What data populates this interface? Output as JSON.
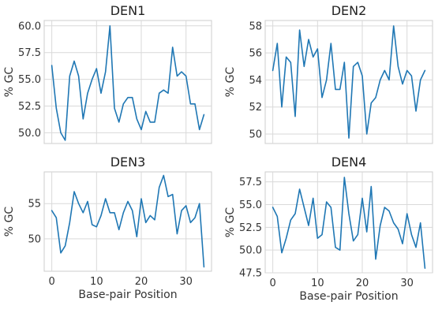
{
  "chart_data": [
    {
      "type": "line",
      "title": "DEN1",
      "xlabel": "",
      "ylabel": "% GC",
      "xlim": [
        -1.7,
        35.7
      ],
      "ylim": [
        49.0,
        60.5
      ],
      "xticks": [],
      "yticks": [
        50.0,
        52.5,
        55.0,
        57.5,
        60.0
      ],
      "ytick_labels": [
        "50.0",
        "52.5",
        "55.0",
        "57.5",
        "60.0"
      ],
      "color": "#1f77b4",
      "series": [
        {
          "name": "DEN1",
          "x": [
            0,
            1,
            2,
            3,
            4,
            5,
            6,
            7,
            8,
            9,
            10,
            11,
            12,
            13,
            14,
            15,
            16,
            17,
            18,
            19,
            20,
            21,
            22,
            23,
            24,
            25,
            26,
            27,
            28,
            29,
            30,
            31,
            32,
            33,
            34
          ],
          "values": [
            56.3,
            52.3,
            50.0,
            49.3,
            55.3,
            56.7,
            55.3,
            51.3,
            53.7,
            55.0,
            56.0,
            53.7,
            55.7,
            60.0,
            52.3,
            51.0,
            52.7,
            53.3,
            53.3,
            51.3,
            50.3,
            52.0,
            51.0,
            51.0,
            53.7,
            54.0,
            53.7,
            58.0,
            55.3,
            55.7,
            55.3,
            52.7,
            52.7,
            50.3,
            51.7
          ]
        }
      ]
    },
    {
      "type": "line",
      "title": "DEN2",
      "xlabel": "",
      "ylabel": "% GC",
      "xlim": [
        -1.7,
        35.7
      ],
      "ylim": [
        49.3,
        58.4
      ],
      "xticks": [],
      "yticks": [
        50,
        52,
        54,
        56,
        58
      ],
      "ytick_labels": [
        "50",
        "52",
        "54",
        "56",
        "58"
      ],
      "color": "#1f77b4",
      "series": [
        {
          "name": "DEN2",
          "x": [
            0,
            1,
            2,
            3,
            4,
            5,
            6,
            7,
            8,
            9,
            10,
            11,
            12,
            13,
            14,
            15,
            16,
            17,
            18,
            19,
            20,
            21,
            22,
            23,
            24,
            25,
            26,
            27,
            28,
            29,
            30,
            31,
            32,
            33,
            34
          ],
          "values": [
            54.7,
            56.7,
            52.0,
            55.7,
            55.3,
            51.3,
            57.7,
            55.0,
            57.0,
            55.7,
            56.3,
            52.7,
            54.0,
            56.7,
            53.3,
            53.3,
            55.3,
            49.7,
            55.0,
            55.3,
            54.3,
            50.0,
            52.3,
            52.7,
            54.0,
            54.7,
            54.0,
            58.0,
            55.0,
            53.7,
            54.7,
            54.3,
            51.7,
            54.0,
            54.7
          ]
        }
      ]
    },
    {
      "type": "line",
      "title": "DEN3",
      "xlabel": "Base-pair Position",
      "ylabel": "% GC",
      "xlim": [
        -1.7,
        35.7
      ],
      "ylim": [
        45.4,
        59.5
      ],
      "xticks": [
        0,
        10,
        20,
        30
      ],
      "xtick_labels": [
        "0",
        "10",
        "20",
        "30"
      ],
      "yticks": [
        50,
        55
      ],
      "ytick_labels": [
        "50",
        "55"
      ],
      "color": "#1f77b4",
      "series": [
        {
          "name": "DEN3",
          "x": [
            0,
            1,
            2,
            3,
            4,
            5,
            6,
            7,
            8,
            9,
            10,
            11,
            12,
            13,
            14,
            15,
            16,
            17,
            18,
            19,
            20,
            21,
            22,
            23,
            24,
            25,
            26,
            27,
            28,
            29,
            30,
            31,
            32,
            33,
            34
          ],
          "values": [
            54.0,
            53.0,
            48.0,
            49.0,
            52.3,
            56.7,
            55.0,
            53.7,
            55.3,
            52.0,
            51.7,
            53.3,
            55.7,
            53.7,
            53.7,
            51.3,
            53.7,
            55.3,
            54.0,
            50.3,
            55.7,
            52.3,
            53.3,
            52.7,
            57.3,
            59.0,
            56.0,
            56.3,
            50.7,
            54.0,
            54.7,
            52.3,
            53.0,
            55.0,
            46.0
          ]
        }
      ]
    },
    {
      "type": "line",
      "title": "DEN4",
      "xlabel": "Base-pair Position",
      "ylabel": "% GC",
      "xlim": [
        -1.7,
        35.7
      ],
      "ylim": [
        47.5,
        58.6
      ],
      "xticks": [
        0,
        10,
        20,
        30
      ],
      "xtick_labels": [
        "0",
        "10",
        "20",
        "30"
      ],
      "yticks": [
        47.5,
        50.0,
        52.5,
        55.0,
        57.5
      ],
      "ytick_labels": [
        "47.5",
        "50.0",
        "52.5",
        "55.0",
        "57.5"
      ],
      "color": "#1f77b4",
      "series": [
        {
          "name": "DEN4",
          "x": [
            0,
            1,
            2,
            3,
            4,
            5,
            6,
            7,
            8,
            9,
            10,
            11,
            12,
            13,
            14,
            15,
            16,
            17,
            18,
            19,
            20,
            21,
            22,
            23,
            24,
            25,
            26,
            27,
            28,
            29,
            30,
            31,
            32,
            33,
            34
          ],
          "values": [
            54.7,
            53.7,
            49.7,
            51.3,
            53.3,
            54.0,
            56.7,
            54.7,
            52.7,
            55.7,
            51.3,
            51.7,
            55.3,
            54.7,
            50.3,
            50.0,
            58.0,
            54.0,
            51.0,
            51.7,
            55.7,
            52.0,
            57.0,
            49.0,
            52.7,
            54.7,
            54.3,
            53.0,
            52.3,
            50.7,
            54.0,
            51.7,
            50.3,
            53.0,
            48.0
          ]
        }
      ]
    }
  ]
}
